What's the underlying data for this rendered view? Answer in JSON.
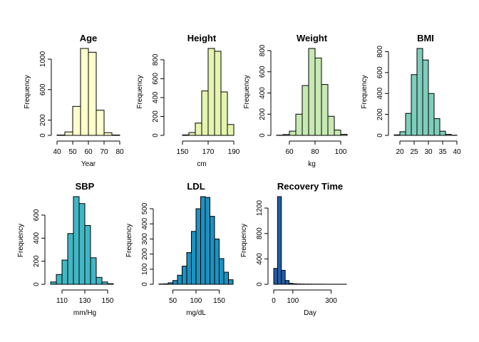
{
  "chart_data": [
    {
      "type": "bar",
      "title": "Age",
      "xlabel": "Year",
      "ylabel": "Frequency",
      "color": "#ffffcc",
      "bin_edges": [
        40,
        45,
        50,
        55,
        60,
        65,
        70,
        75,
        80
      ],
      "values": [
        5,
        45,
        380,
        1140,
        1090,
        330,
        35,
        5
      ],
      "xlim": [
        40,
        80
      ],
      "ylim": [
        0,
        1140
      ],
      "xticks": [
        40,
        50,
        60,
        70,
        80
      ],
      "yticks": [
        0,
        200,
        600,
        1000
      ]
    },
    {
      "type": "bar",
      "title": "Height",
      "xlabel": "cm",
      "ylabel": "Frequency",
      "color": "#e5f5b0",
      "bin_edges": [
        140,
        145,
        150,
        155,
        160,
        165,
        170,
        175,
        180,
        185,
        190
      ],
      "values": [
        0,
        0,
        5,
        30,
        130,
        470,
        920,
        890,
        460,
        115,
        25
      ],
      "xlim": [
        140,
        190
      ],
      "ylim": [
        0,
        920
      ],
      "xticks": [
        150,
        170,
        190
      ],
      "yticks": [
        0,
        200,
        400,
        600,
        800
      ]
    },
    {
      "type": "bar",
      "title": "Weight",
      "xlabel": "kg",
      "ylabel": "Frequency",
      "color": "#c7e9b4",
      "bin_edges": [
        50,
        55,
        60,
        65,
        70,
        75,
        80,
        85,
        90,
        95,
        100,
        105
      ],
      "values": [
        2,
        8,
        40,
        200,
        470,
        820,
        730,
        480,
        180,
        50,
        10
      ],
      "xlim": [
        50,
        105
      ],
      "ylim": [
        0,
        820
      ],
      "xticks": [
        60,
        80,
        100
      ],
      "yticks": [
        0,
        200,
        400,
        600,
        800
      ]
    },
    {
      "type": "bar",
      "title": "BMI",
      "xlabel": "",
      "ylabel": "Frequency",
      "color": "#7fcdbb",
      "bin_edges": [
        18,
        20,
        22,
        24,
        26,
        28,
        30,
        32,
        34,
        36,
        38,
        40
      ],
      "values": [
        5,
        35,
        210,
        580,
        830,
        720,
        400,
        160,
        40,
        10,
        2
      ],
      "xlim": [
        18,
        40
      ],
      "ylim": [
        0,
        830
      ],
      "xticks": [
        20,
        25,
        30,
        35,
        40
      ],
      "yticks": [
        0,
        200,
        400,
        600,
        800
      ]
    },
    {
      "type": "bar",
      "title": "SBP",
      "xlabel": "mm/Hg",
      "ylabel": "Frequency",
      "color": "#41b6c4",
      "bin_edges": [
        100,
        105,
        110,
        115,
        120,
        125,
        130,
        135,
        140,
        145,
        150,
        155,
        160
      ],
      "values": [
        20,
        85,
        210,
        440,
        760,
        700,
        510,
        230,
        60,
        20,
        5,
        0
      ],
      "xlim": [
        100,
        160
      ],
      "ylim": [
        0,
        760
      ],
      "xticks": [
        110,
        130,
        150
      ],
      "yticks": [
        0,
        200,
        400,
        600
      ]
    },
    {
      "type": "bar",
      "title": "LDL",
      "xlabel": "mg/dL",
      "ylabel": "Frequency",
      "color": "#1d91c0",
      "bin_edges": [
        20,
        30,
        40,
        50,
        60,
        70,
        80,
        90,
        100,
        110,
        120,
        130,
        140,
        150,
        160,
        170,
        180
      ],
      "values": [
        2,
        3,
        10,
        25,
        60,
        120,
        210,
        350,
        500,
        580,
        575,
        450,
        300,
        170,
        80,
        30
      ],
      "xlim": [
        20,
        180
      ],
      "ylim": [
        0,
        580
      ],
      "xticks": [
        50,
        100,
        150
      ],
      "yticks": [
        0,
        100,
        200,
        300,
        400,
        500
      ]
    },
    {
      "type": "bar",
      "title": "Recovery Time",
      "xlabel": "Day",
      "ylabel": "Frequency",
      "color": "#225ea8",
      "bin_edges": [
        0,
        20,
        40,
        60,
        80,
        100,
        120,
        140,
        160,
        180,
        200,
        220,
        240,
        260,
        280,
        300,
        320,
        340,
        360,
        380
      ],
      "values": [
        250,
        1380,
        220,
        60,
        15,
        8,
        5,
        4,
        3,
        3,
        2,
        2,
        2,
        1,
        1,
        1,
        1,
        1,
        1
      ],
      "xlim": [
        0,
        380
      ],
      "ylim": [
        0,
        1380
      ],
      "xticks": [
        0,
        100,
        300
      ],
      "yticks": [
        0,
        400,
        800,
        1200
      ]
    }
  ]
}
